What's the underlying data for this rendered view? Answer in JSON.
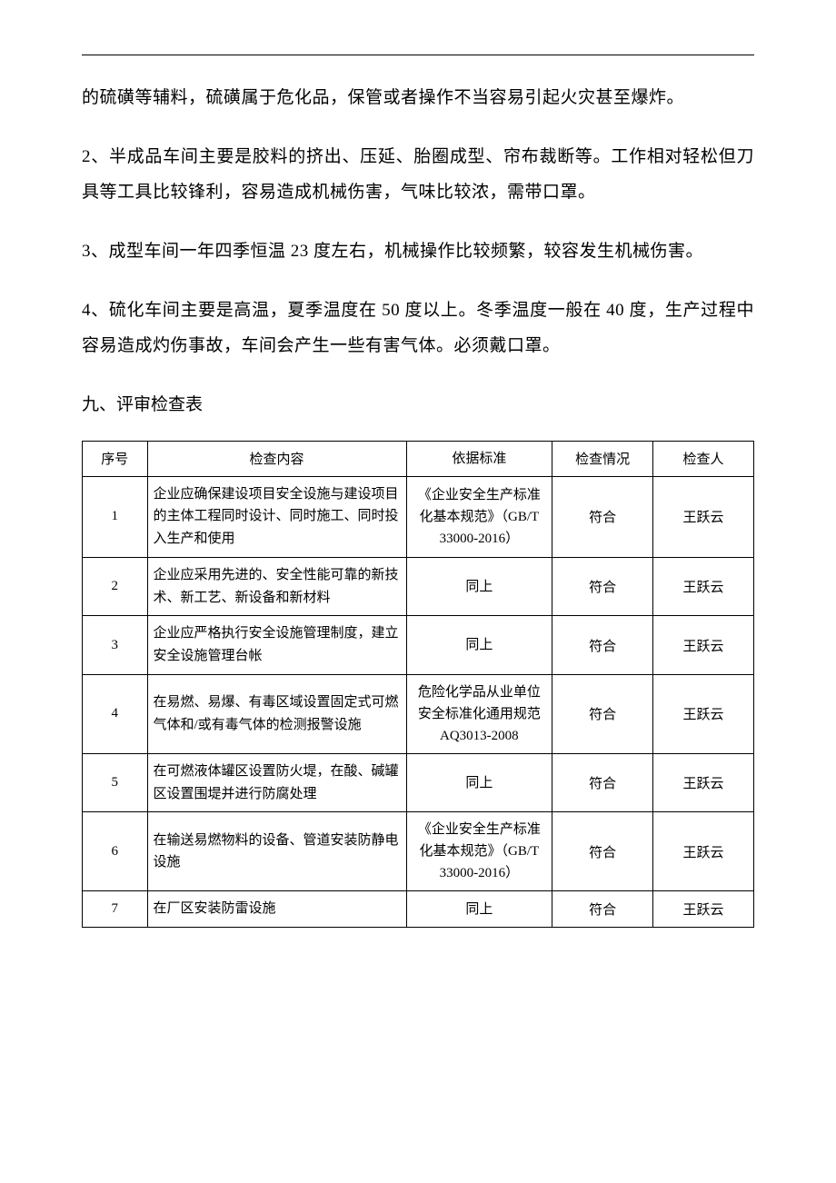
{
  "paragraphs": {
    "p0": "的硫磺等辅料，硫磺属于危化品，保管或者操作不当容易引起火灾甚至爆炸。",
    "p1": "2、半成品车间主要是胶料的挤出、压延、胎圈成型、帘布裁断等。工作相对轻松但刀具等工具比较锋利，容易造成机械伤害，气味比较浓，需带口罩。",
    "p2": "3、成型车间一年四季恒温 23 度左右，机械操作比较频繁，较容发生机械伤害。",
    "p3": "4、硫化车间主要是高温，夏季温度在 50 度以上。冬季温度一般在 40 度，生产过程中容易造成灼伤事故，车间会产生一些有害气体。必须戴口罩。"
  },
  "section_heading": "九、评审检查表",
  "table": {
    "headers": {
      "seq": "序号",
      "item": "检查内容",
      "basis": "依据标准",
      "status": "检查情况",
      "inspector": "检查人"
    },
    "rows": [
      {
        "seq": "1",
        "item": "企业应确保建设项目安全设施与建设项目的主体工程同时设计、同时施工、同时投入生产和使用",
        "basis": "《企业安全生产标准化基本规范》（GB/T 33000-2016）",
        "status": "符合",
        "inspector": "王跃云"
      },
      {
        "seq": "2",
        "item": "企业应采用先进的、安全性能可靠的新技术、新工艺、新设备和新材料",
        "basis": "同上",
        "status": "符合",
        "inspector": "王跃云"
      },
      {
        "seq": "3",
        "item": "企业应严格执行安全设施管理制度，建立安全设施管理台帐",
        "basis": "同上",
        "status": "符合",
        "inspector": "王跃云"
      },
      {
        "seq": "4",
        "item": "在易燃、易爆、有毒区域设置固定式可燃气体和/或有毒气体的检测报警设施",
        "basis": "危险化学品从业单位安全标准化通用规范AQ3013-2008",
        "status": "符合",
        "inspector": "王跃云"
      },
      {
        "seq": "5",
        "item": "在可燃液体罐区设置防火堤，在酸、碱罐区设置围堤并进行防腐处理",
        "basis": "同上",
        "status": "符合",
        "inspector": "王跃云"
      },
      {
        "seq": "6",
        "item": "在输送易燃物料的设备、管道安装防静电设施",
        "basis": "《企业安全生产标准化基本规范》（GB/T 33000-2016）",
        "status": "符合",
        "inspector": "王跃云"
      },
      {
        "seq": "7",
        "item": "在厂区安装防雷设施",
        "basis": "同上",
        "status": "符合",
        "inspector": "王跃云"
      }
    ]
  }
}
